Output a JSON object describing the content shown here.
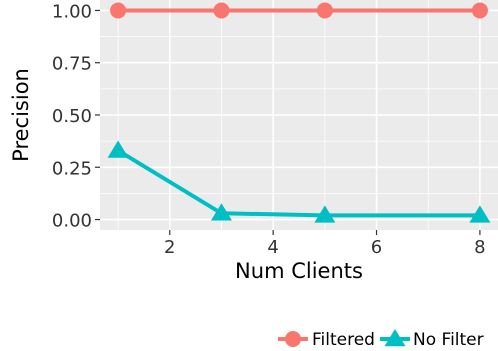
{
  "chart_data": {
    "type": "line",
    "title": "",
    "xlabel": "Num Clients",
    "ylabel": "Precision",
    "xlim": [
      0.65,
      8.35
    ],
    "ylim": [
      -0.05,
      1.05
    ],
    "x_ticks": [
      2,
      4,
      6,
      8
    ],
    "x_tick_labels": [
      "2",
      "4",
      "6",
      "8"
    ],
    "y_ticks": [
      0,
      0.25,
      0.5,
      0.75,
      1
    ],
    "y_tick_labels": [
      "0.00",
      "0.25",
      "0.50",
      "0.75",
      "1.00"
    ],
    "x_minor_ticks": [
      1,
      3,
      5,
      7
    ],
    "y_minor_ticks": [
      0.125,
      0.375,
      0.625,
      0.875
    ],
    "grid": true,
    "background": "#EBEBEB",
    "legend_position": "bottom-right",
    "series": [
      {
        "name": "Filtered",
        "color": "#F8766D",
        "marker": "circle",
        "x": [
          1,
          3,
          5,
          8
        ],
        "y": [
          1.0,
          1.0,
          1.0,
          1.0
        ]
      },
      {
        "name": "No Filter",
        "color": "#00BFC4",
        "marker": "triangle",
        "x": [
          1,
          3,
          5,
          8
        ],
        "y": [
          0.33,
          0.03,
          0.02,
          0.02
        ]
      }
    ]
  }
}
